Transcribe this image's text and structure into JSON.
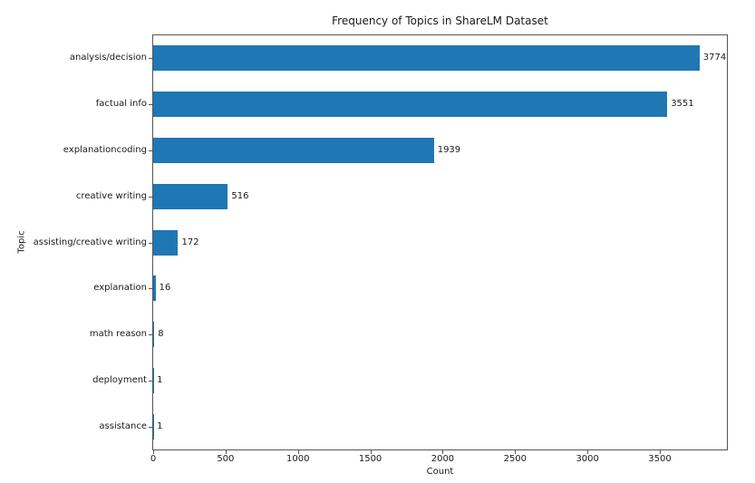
{
  "chart_data": {
    "type": "bar",
    "orientation": "horizontal",
    "title": "Frequency of Topics in ShareLM Dataset",
    "xlabel": "Count",
    "ylabel": "Topic",
    "categories": [
      "analysis/decision",
      "factual info",
      "explanationcoding",
      "creative writing",
      "assisting/creative writing",
      "explanation",
      "math reason",
      "deployment",
      "assistance"
    ],
    "values": [
      3774,
      3551,
      1939,
      516,
      172,
      16,
      8,
      1,
      1
    ],
    "value_labels": [
      "3774",
      "3551",
      "1939",
      "516",
      "172",
      "16",
      "8",
      "1",
      "1"
    ],
    "xticks": [
      0,
      500,
      1000,
      1500,
      2000,
      2500,
      3000,
      3500
    ],
    "xtick_labels": [
      "0",
      "500",
      "1000",
      "1500",
      "2000",
      "2500",
      "3000",
      "3500"
    ],
    "xlim": [
      0,
      3963
    ],
    "grid": false,
    "legend": null,
    "bar_color": "#1f77b4",
    "spine_color": "#555555",
    "text_color": "#1a1a1a"
  }
}
